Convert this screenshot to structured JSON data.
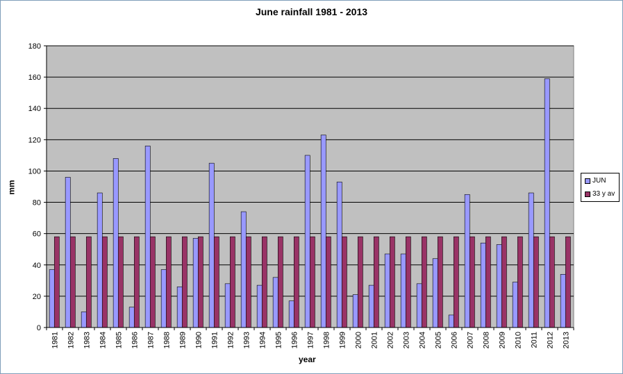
{
  "chart_data": {
    "type": "bar",
    "title": "June rainfall 1981 - 2013",
    "xlabel": "year",
    "ylabel": "mm",
    "ylim": [
      0,
      180
    ],
    "yticks": [
      0,
      20,
      40,
      60,
      80,
      100,
      120,
      140,
      160,
      180
    ],
    "grid": true,
    "legend": "right",
    "plot_background": "#c0c0c0",
    "categories": [
      "1981",
      "1982",
      "1983",
      "1984",
      "1985",
      "1986",
      "1987",
      "1988",
      "1989",
      "1990",
      "1991",
      "1992",
      "1993",
      "1994",
      "1995",
      "1996",
      "1997",
      "1998",
      "1999",
      "2000",
      "2001",
      "2002",
      "2003",
      "2004",
      "2005",
      "2006",
      "2007",
      "2008",
      "2009",
      "2010",
      "2011",
      "2012",
      "2013"
    ],
    "series": [
      {
        "name": "JUN",
        "color": "#9999ff",
        "values": [
          37,
          96,
          10,
          86,
          108,
          13,
          116,
          37,
          26,
          57,
          105,
          28,
          74,
          27,
          32,
          17,
          110,
          123,
          93,
          21,
          27,
          47,
          47,
          28,
          44,
          8,
          85,
          54,
          53,
          29,
          86,
          159,
          34
        ]
      },
      {
        "name": "33 y av",
        "color": "#993366",
        "values": [
          58,
          58,
          58,
          58,
          58,
          58,
          58,
          58,
          58,
          58,
          58,
          58,
          58,
          58,
          58,
          58,
          58,
          58,
          58,
          58,
          58,
          58,
          58,
          58,
          58,
          58,
          58,
          58,
          58,
          58,
          58,
          58,
          58
        ]
      }
    ]
  }
}
